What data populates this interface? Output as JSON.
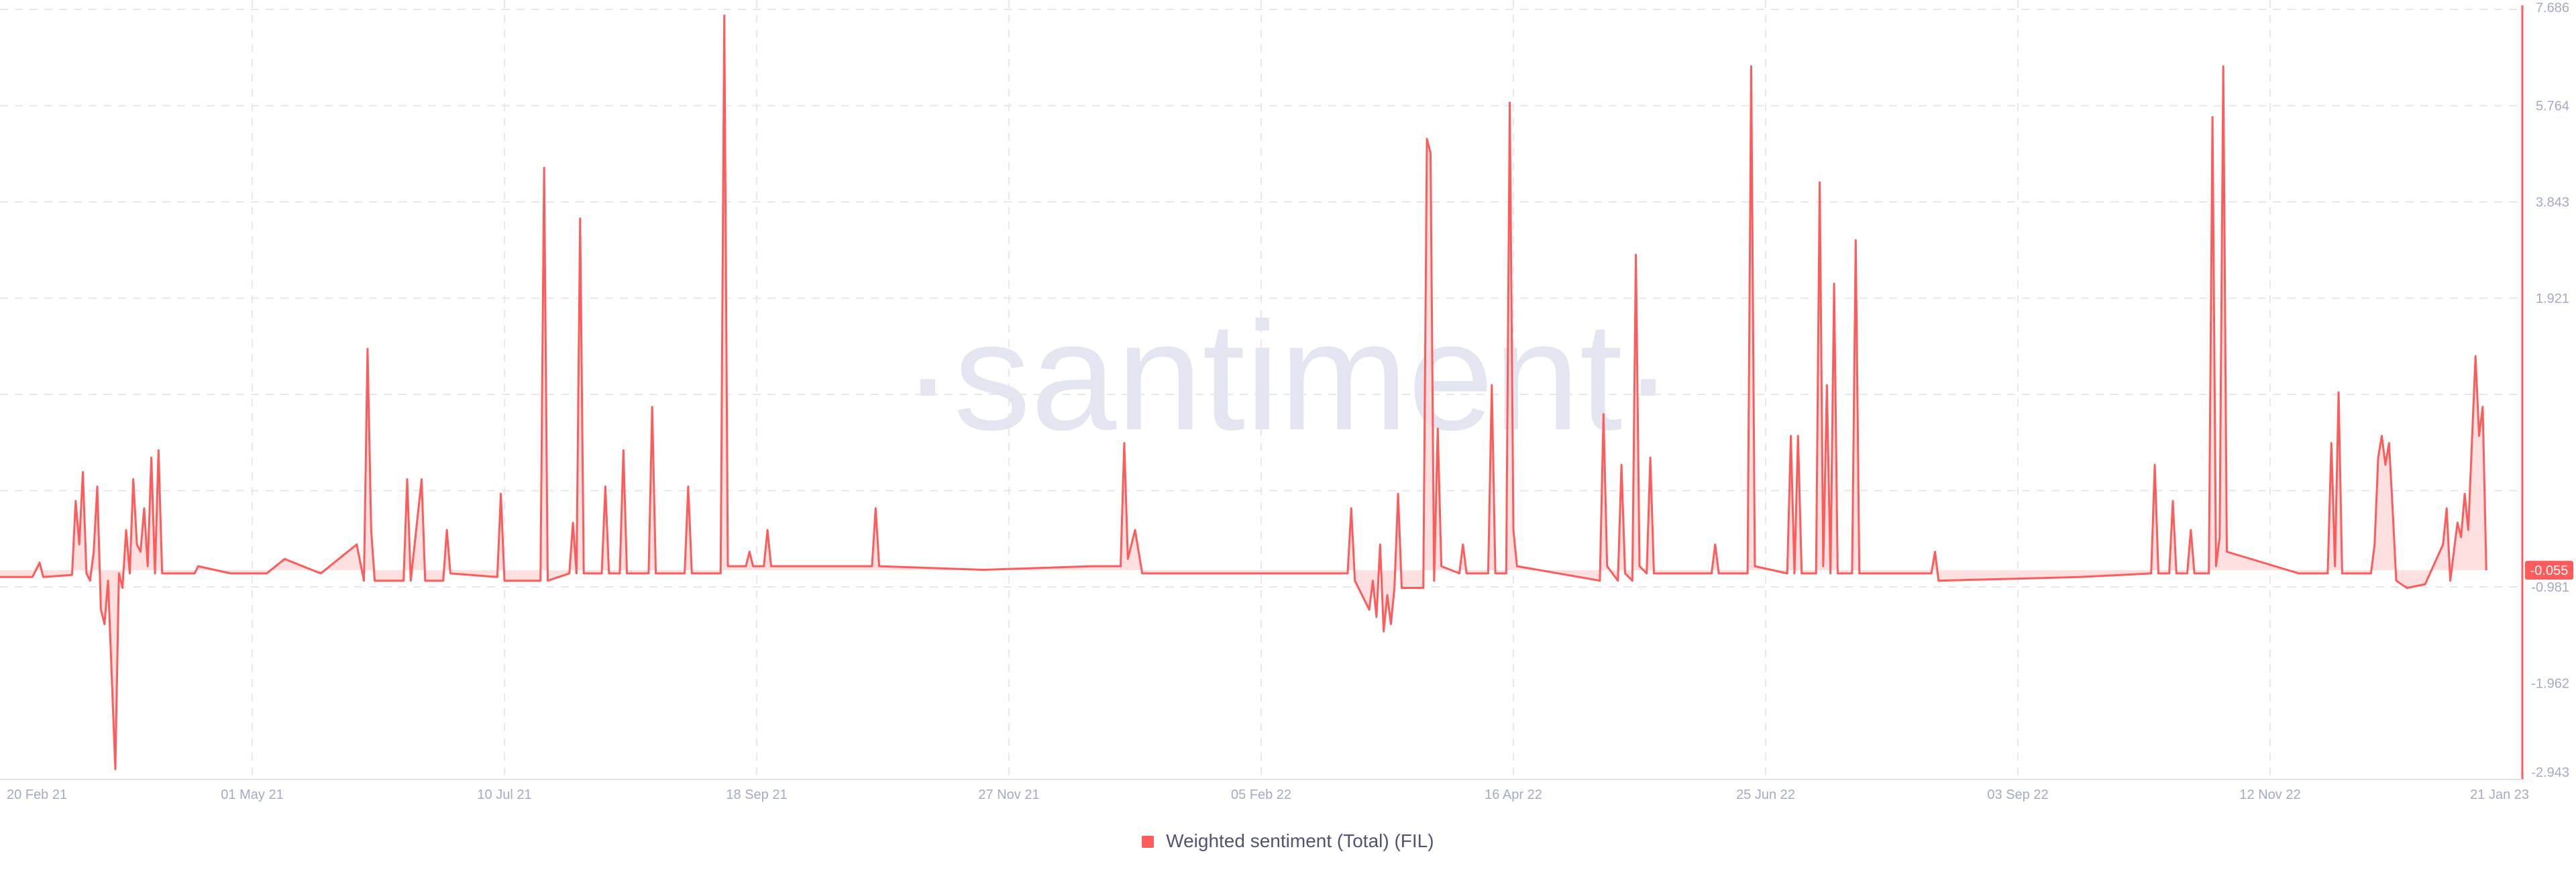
{
  "chart_data": {
    "type": "area",
    "watermark": "·santiment·",
    "color": "#ff5b5b",
    "fill_color": "#ffd6d6",
    "grid": true,
    "legend_position": "bottom-center",
    "xlim": [
      "2021-02-20",
      "2023-01-21"
    ],
    "ylim": [
      -2.943,
      7.686
    ],
    "x_ticks": [
      "20 Feb 21",
      "01 May 21",
      "10 Jul 21",
      "18 Sep 21",
      "27 Nov 21",
      "05 Feb 22",
      "16 Apr 22",
      "25 Jun 22",
      "03 Sep 22",
      "12 Nov 22",
      "21 Jan 23"
    ],
    "y_ticks": [
      "7.686",
      "5.764",
      "3.843",
      "1.921",
      "-0.981",
      "-1.962",
      "-2.943"
    ],
    "last_value_label": "-0.055",
    "series": [
      {
        "name": "Weighted sentiment (Total) (FIL)",
        "points": [
          [
            "2021-02-20",
            -0.15
          ],
          [
            "2021-03-01",
            -0.15
          ],
          [
            "2021-03-03",
            0.05
          ],
          [
            "2021-03-04",
            -0.15
          ],
          [
            "2021-03-12",
            -0.12
          ],
          [
            "2021-03-13",
            0.9
          ],
          [
            "2021-03-14",
            0.3
          ],
          [
            "2021-03-15",
            1.3
          ],
          [
            "2021-03-16",
            -0.1
          ],
          [
            "2021-03-17",
            -0.2
          ],
          [
            "2021-03-18",
            0.2
          ],
          [
            "2021-03-19",
            1.1
          ],
          [
            "2021-03-20",
            -0.6
          ],
          [
            "2021-03-21",
            -0.8
          ],
          [
            "2021-03-22",
            -0.2
          ],
          [
            "2021-03-24",
            -2.8
          ],
          [
            "2021-03-25",
            -0.1
          ],
          [
            "2021-03-26",
            -0.3
          ],
          [
            "2021-03-27",
            0.5
          ],
          [
            "2021-03-28",
            -0.1
          ],
          [
            "2021-03-29",
            1.2
          ],
          [
            "2021-03-30",
            0.3
          ],
          [
            "2021-03-31",
            0.2
          ],
          [
            "2021-04-01",
            0.8
          ],
          [
            "2021-04-02",
            0.0
          ],
          [
            "2021-04-03",
            1.5
          ],
          [
            "2021-04-04",
            -0.1
          ],
          [
            "2021-04-05",
            1.6
          ],
          [
            "2021-04-06",
            -0.1
          ],
          [
            "2021-04-15",
            -0.1
          ],
          [
            "2021-04-16",
            0.0
          ],
          [
            "2021-04-25",
            -0.1
          ],
          [
            "2021-05-05",
            -0.1
          ],
          [
            "2021-05-10",
            0.1
          ],
          [
            "2021-05-20",
            -0.1
          ],
          [
            "2021-05-30",
            0.3
          ],
          [
            "2021-06-01",
            -0.2
          ],
          [
            "2021-06-02",
            3.0
          ],
          [
            "2021-06-03",
            0.5
          ],
          [
            "2021-06-04",
            -0.2
          ],
          [
            "2021-06-12",
            -0.2
          ],
          [
            "2021-06-13",
            1.2
          ],
          [
            "2021-06-14",
            -0.2
          ],
          [
            "2021-06-17",
            1.2
          ],
          [
            "2021-06-18",
            -0.2
          ],
          [
            "2021-06-23",
            -0.2
          ],
          [
            "2021-06-24",
            0.5
          ],
          [
            "2021-06-25",
            -0.1
          ],
          [
            "2021-07-08",
            -0.15
          ],
          [
            "2021-07-09",
            1.0
          ],
          [
            "2021-07-10",
            -0.2
          ],
          [
            "2021-07-20",
            -0.2
          ],
          [
            "2021-07-21",
            5.5
          ],
          [
            "2021-07-22",
            -0.2
          ],
          [
            "2021-07-28",
            -0.1
          ],
          [
            "2021-07-29",
            0.6
          ],
          [
            "2021-07-30",
            -0.1
          ],
          [
            "2021-07-31",
            4.8
          ],
          [
            "2021-08-01",
            -0.1
          ],
          [
            "2021-08-06",
            -0.1
          ],
          [
            "2021-08-07",
            1.1
          ],
          [
            "2021-08-08",
            -0.1
          ],
          [
            "2021-08-11",
            -0.1
          ],
          [
            "2021-08-12",
            1.6
          ],
          [
            "2021-08-13",
            -0.1
          ],
          [
            "2021-08-19",
            -0.1
          ],
          [
            "2021-08-20",
            2.2
          ],
          [
            "2021-08-21",
            -0.1
          ],
          [
            "2021-08-29",
            -0.1
          ],
          [
            "2021-08-30",
            1.1
          ],
          [
            "2021-08-31",
            -0.1
          ],
          [
            "2021-09-08",
            -0.1
          ],
          [
            "2021-09-09",
            7.6
          ],
          [
            "2021-09-10",
            0.0
          ],
          [
            "2021-09-15",
            0.0
          ],
          [
            "2021-09-16",
            0.2
          ],
          [
            "2021-09-17",
            0.0
          ],
          [
            "2021-09-20",
            0.0
          ],
          [
            "2021-09-21",
            0.5
          ],
          [
            "2021-09-22",
            0.0
          ],
          [
            "2021-10-20",
            0.0
          ],
          [
            "2021-10-21",
            0.8
          ],
          [
            "2021-10-22",
            0.0
          ],
          [
            "2021-11-20",
            -0.05
          ],
          [
            "2021-12-20",
            0.0
          ],
          [
            "2021-12-28",
            0.0
          ],
          [
            "2021-12-29",
            1.7
          ],
          [
            "2021-12-30",
            0.1
          ],
          [
            "2022-01-01",
            0.5
          ],
          [
            "2022-01-03",
            -0.1
          ],
          [
            "2022-01-20",
            -0.1
          ],
          [
            "2022-02-10",
            -0.1
          ],
          [
            "2022-03-01",
            -0.1
          ],
          [
            "2022-03-02",
            0.8
          ],
          [
            "2022-03-03",
            -0.2
          ],
          [
            "2022-03-07",
            -0.6
          ],
          [
            "2022-03-08",
            -0.2
          ],
          [
            "2022-03-09",
            -0.7
          ],
          [
            "2022-03-10",
            0.3
          ],
          [
            "2022-03-11",
            -0.9
          ],
          [
            "2022-03-12",
            -0.4
          ],
          [
            "2022-03-13",
            -0.8
          ],
          [
            "2022-03-14",
            -0.3
          ],
          [
            "2022-03-15",
            1.0
          ],
          [
            "2022-03-16",
            -0.3
          ],
          [
            "2022-03-22",
            -0.3
          ],
          [
            "2022-03-23",
            5.9
          ],
          [
            "2022-03-24",
            5.7
          ],
          [
            "2022-03-25",
            -0.2
          ],
          [
            "2022-03-26",
            1.9
          ],
          [
            "2022-03-27",
            0.0
          ],
          [
            "2022-04-01",
            -0.1
          ],
          [
            "2022-04-02",
            0.3
          ],
          [
            "2022-04-03",
            -0.1
          ],
          [
            "2022-04-09",
            -0.1
          ],
          [
            "2022-04-10",
            2.5
          ],
          [
            "2022-04-11",
            -0.1
          ],
          [
            "2022-04-14",
            -0.1
          ],
          [
            "2022-04-15",
            6.4
          ],
          [
            "2022-04-16",
            0.5
          ],
          [
            "2022-04-17",
            0.0
          ],
          [
            "2022-05-10",
            -0.2
          ],
          [
            "2022-05-11",
            2.1
          ],
          [
            "2022-05-12",
            0.0
          ],
          [
            "2022-05-15",
            -0.2
          ],
          [
            "2022-05-16",
            1.4
          ],
          [
            "2022-05-17",
            -0.1
          ],
          [
            "2022-05-19",
            -0.2
          ],
          [
            "2022-05-20",
            4.3
          ],
          [
            "2022-05-21",
            0.0
          ],
          [
            "2022-05-23",
            -0.1
          ],
          [
            "2022-05-24",
            1.5
          ],
          [
            "2022-05-25",
            -0.1
          ],
          [
            "2022-06-10",
            -0.1
          ],
          [
            "2022-06-11",
            0.3
          ],
          [
            "2022-06-12",
            -0.1
          ],
          [
            "2022-06-20",
            -0.1
          ],
          [
            "2022-06-21",
            6.9
          ],
          [
            "2022-06-22",
            0.0
          ],
          [
            "2022-07-01",
            -0.1
          ],
          [
            "2022-07-02",
            1.8
          ],
          [
            "2022-07-03",
            -0.1
          ],
          [
            "2022-07-04",
            1.8
          ],
          [
            "2022-07-05",
            -0.1
          ],
          [
            "2022-07-09",
            -0.1
          ],
          [
            "2022-07-10",
            5.3
          ],
          [
            "2022-07-11",
            0.0
          ],
          [
            "2022-07-12",
            2.5
          ],
          [
            "2022-07-13",
            -0.1
          ],
          [
            "2022-07-14",
            3.9
          ],
          [
            "2022-07-15",
            -0.1
          ],
          [
            "2022-07-19",
            -0.1
          ],
          [
            "2022-07-20",
            4.5
          ],
          [
            "2022-07-21",
            -0.1
          ],
          [
            "2022-08-10",
            -0.1
          ],
          [
            "2022-08-11",
            0.2
          ],
          [
            "2022-08-12",
            -0.2
          ],
          [
            "2022-09-20",
            -0.15
          ],
          [
            "2022-10-10",
            -0.1
          ],
          [
            "2022-10-11",
            1.4
          ],
          [
            "2022-10-12",
            -0.1
          ],
          [
            "2022-10-15",
            -0.1
          ],
          [
            "2022-10-16",
            0.9
          ],
          [
            "2022-10-17",
            -0.1
          ],
          [
            "2022-10-20",
            -0.1
          ],
          [
            "2022-10-21",
            0.5
          ],
          [
            "2022-10-22",
            -0.1
          ],
          [
            "2022-10-26",
            -0.1
          ],
          [
            "2022-10-27",
            6.2
          ],
          [
            "2022-10-28",
            0.0
          ],
          [
            "2022-10-29",
            0.4
          ],
          [
            "2022-10-30",
            6.9
          ],
          [
            "2022-10-31",
            0.2
          ],
          [
            "2022-11-20",
            -0.1
          ],
          [
            "2022-11-28",
            -0.1
          ],
          [
            "2022-11-29",
            1.7
          ],
          [
            "2022-11-30",
            0.0
          ],
          [
            "2022-12-01",
            2.4
          ],
          [
            "2022-12-02",
            -0.1
          ],
          [
            "2022-12-10",
            -0.1
          ],
          [
            "2022-12-11",
            0.3
          ],
          [
            "2022-12-12",
            1.5
          ],
          [
            "2022-12-13",
            1.8
          ],
          [
            "2022-12-14",
            1.4
          ],
          [
            "2022-12-15",
            1.7
          ],
          [
            "2022-12-16",
            0.8
          ],
          [
            "2022-12-17",
            -0.2
          ],
          [
            "2022-12-20",
            -0.3
          ],
          [
            "2022-12-25",
            -0.25
          ],
          [
            "2022-12-30",
            0.3
          ],
          [
            "2022-12-31",
            0.8
          ],
          [
            "2023-01-01",
            -0.2
          ],
          [
            "2023-01-03",
            0.6
          ],
          [
            "2023-01-04",
            0.4
          ],
          [
            "2023-01-05",
            1.0
          ],
          [
            "2023-01-06",
            0.5
          ],
          [
            "2023-01-08",
            2.9
          ],
          [
            "2023-01-09",
            1.8
          ],
          [
            "2023-01-10",
            2.2
          ],
          [
            "2023-01-11",
            -0.055
          ]
        ]
      }
    ]
  },
  "legend": {
    "label": "Weighted sentiment (Total) (FIL)",
    "color": "#ff5b5b"
  }
}
